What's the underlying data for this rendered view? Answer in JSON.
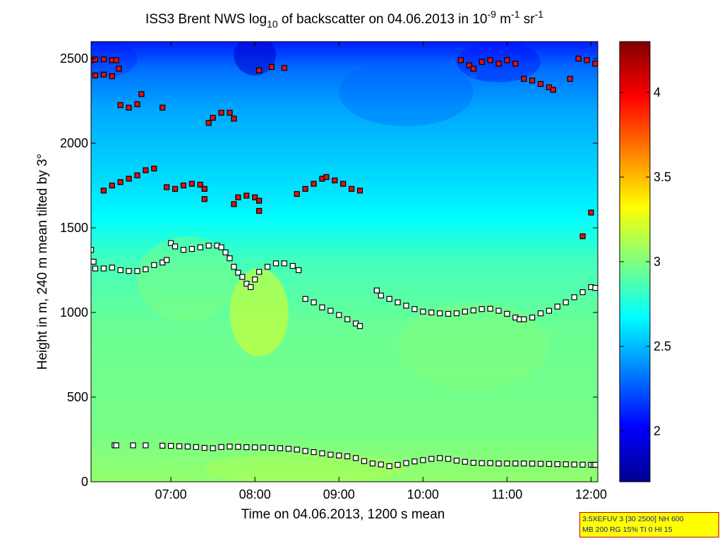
{
  "chart_data": {
    "type": "heatmap",
    "title_parts": {
      "prefix": "ISS3 Brent NWS log",
      "sub": "10",
      "middle": " of backscatter on 04.06.2013 in 10",
      "sup1": "-9",
      "m": " m",
      "sup2": "-1",
      "sr": " sr",
      "sup3": "-1"
    },
    "xlabel": "Time on 04.06.2013, 1200 s mean",
    "ylabel": "Height in m, 240 m mean tilted by 3°",
    "x_range_hours": [
      6.05,
      12.08
    ],
    "y_range_m": [
      0,
      2600
    ],
    "x_ticks": [
      {
        "value": 7.0,
        "label": "07:00"
      },
      {
        "value": 8.0,
        "label": "08:00"
      },
      {
        "value": 9.0,
        "label": "09:00"
      },
      {
        "value": 10.0,
        "label": "10:00"
      },
      {
        "value": 11.0,
        "label": "11:00"
      },
      {
        "value": 12.0,
        "label": "12:00"
      }
    ],
    "y_ticks": [
      {
        "value": 0,
        "label": "0"
      },
      {
        "value": 500,
        "label": "500"
      },
      {
        "value": 1000,
        "label": "1000"
      },
      {
        "value": 1500,
        "label": "1500"
      },
      {
        "value": 2000,
        "label": "2000"
      },
      {
        "value": 2500,
        "label": "2500"
      }
    ],
    "colorbar": {
      "range": [
        1.7,
        4.3
      ],
      "colormap": "jet",
      "ticks": [
        {
          "value": 2.0,
          "label": "2"
        },
        {
          "value": 2.5,
          "label": "2.5"
        },
        {
          "value": 3.0,
          "label": "3"
        },
        {
          "value": 3.5,
          "label": "3.5"
        },
        {
          "value": 4.0,
          "label": "4"
        }
      ]
    },
    "background_profile": [
      {
        "height": 0,
        "value": 3.05
      },
      {
        "height": 300,
        "value": 2.98
      },
      {
        "height": 900,
        "value": 2.95
      },
      {
        "height": 1300,
        "value": 2.85
      },
      {
        "height": 1600,
        "value": 2.65
      },
      {
        "height": 1900,
        "value": 2.55
      },
      {
        "height": 2200,
        "value": 2.45
      },
      {
        "height": 2450,
        "value": 2.3
      },
      {
        "height": 2600,
        "value": 2.1
      }
    ],
    "series": [
      {
        "name": "layer-low",
        "marker": "white-square",
        "points": [
          [
            6.33,
            215
          ],
          [
            6.35,
            215
          ],
          [
            6.55,
            215
          ],
          [
            6.7,
            215
          ],
          [
            6.9,
            213
          ],
          [
            7.0,
            212
          ],
          [
            7.1,
            210
          ],
          [
            7.2,
            208
          ],
          [
            7.3,
            205
          ],
          [
            7.4,
            200
          ],
          [
            7.5,
            198
          ],
          [
            7.6,
            205
          ],
          [
            7.7,
            208
          ],
          [
            7.8,
            206
          ],
          [
            7.9,
            204
          ],
          [
            8.0,
            203
          ],
          [
            8.1,
            202
          ],
          [
            8.2,
            200
          ],
          [
            8.3,
            198
          ],
          [
            8.4,
            195
          ],
          [
            8.5,
            190
          ],
          [
            8.6,
            182
          ],
          [
            8.7,
            175
          ],
          [
            8.8,
            168
          ],
          [
            8.9,
            160
          ],
          [
            9.0,
            155
          ],
          [
            9.1,
            150
          ],
          [
            9.2,
            140
          ],
          [
            9.3,
            122
          ],
          [
            9.4,
            108
          ],
          [
            9.5,
            102
          ],
          [
            9.6,
            92
          ],
          [
            9.7,
            100
          ],
          [
            9.8,
            110
          ],
          [
            9.9,
            120
          ],
          [
            10.0,
            128
          ],
          [
            10.1,
            135
          ],
          [
            10.2,
            140
          ],
          [
            10.3,
            135
          ],
          [
            10.4,
            125
          ],
          [
            10.5,
            118
          ],
          [
            10.6,
            112
          ],
          [
            10.7,
            110
          ],
          [
            10.8,
            110
          ],
          [
            10.9,
            108
          ],
          [
            11.0,
            108
          ],
          [
            11.1,
            108
          ],
          [
            11.2,
            108
          ],
          [
            11.3,
            107
          ],
          [
            11.4,
            106
          ],
          [
            11.5,
            105
          ],
          [
            11.6,
            104
          ],
          [
            11.7,
            103
          ],
          [
            11.8,
            102
          ],
          [
            11.9,
            101
          ],
          [
            12.0,
            100
          ],
          [
            12.03,
            100
          ],
          [
            12.05,
            100
          ]
        ]
      },
      {
        "name": "layer-mid",
        "marker": "white-square",
        "points": [
          [
            6.05,
            1370
          ],
          [
            6.08,
            1300
          ],
          [
            6.1,
            1260
          ],
          [
            6.2,
            1260
          ],
          [
            6.3,
            1265
          ],
          [
            6.4,
            1250
          ],
          [
            6.5,
            1245
          ],
          [
            6.6,
            1245
          ],
          [
            6.7,
            1255
          ],
          [
            6.8,
            1280
          ],
          [
            6.9,
            1295
          ],
          [
            6.95,
            1310
          ],
          [
            7.0,
            1410
          ],
          [
            7.05,
            1390
          ],
          [
            7.15,
            1370
          ],
          [
            7.25,
            1375
          ],
          [
            7.35,
            1385
          ],
          [
            7.45,
            1395
          ],
          [
            7.55,
            1395
          ],
          [
            7.6,
            1385
          ],
          [
            7.65,
            1355
          ],
          [
            7.7,
            1320
          ],
          [
            7.75,
            1270
          ],
          [
            7.8,
            1235
          ],
          [
            7.85,
            1210
          ],
          [
            7.9,
            1170
          ],
          [
            7.95,
            1150
          ],
          [
            8.0,
            1195
          ],
          [
            8.05,
            1240
          ],
          [
            8.15,
            1270
          ],
          [
            8.25,
            1290
          ],
          [
            8.35,
            1290
          ],
          [
            8.45,
            1275
          ],
          [
            8.52,
            1250
          ]
        ]
      },
      {
        "name": "layer-mid-2",
        "marker": "white-square",
        "points": [
          [
            8.6,
            1080
          ],
          [
            8.7,
            1060
          ],
          [
            8.8,
            1030
          ],
          [
            8.9,
            1010
          ],
          [
            9.0,
            985
          ],
          [
            9.1,
            960
          ],
          [
            9.2,
            935
          ],
          [
            9.25,
            920
          ]
        ]
      },
      {
        "name": "layer-mid-3",
        "marker": "white-square",
        "points": [
          [
            9.45,
            1130
          ],
          [
            9.5,
            1100
          ],
          [
            9.6,
            1080
          ],
          [
            9.7,
            1060
          ],
          [
            9.8,
            1040
          ],
          [
            9.9,
            1020
          ],
          [
            10.0,
            1005
          ],
          [
            10.1,
            1000
          ],
          [
            10.2,
            995
          ],
          [
            10.3,
            992
          ],
          [
            10.4,
            995
          ],
          [
            10.5,
            1005
          ],
          [
            10.6,
            1012
          ],
          [
            10.7,
            1020
          ],
          [
            10.8,
            1022
          ],
          [
            10.9,
            1010
          ],
          [
            11.0,
            992
          ],
          [
            11.1,
            970
          ],
          [
            11.15,
            960
          ],
          [
            11.2,
            960
          ],
          [
            11.3,
            970
          ],
          [
            11.4,
            995
          ],
          [
            11.5,
            1010
          ],
          [
            11.6,
            1035
          ],
          [
            11.7,
            1060
          ],
          [
            11.8,
            1090
          ],
          [
            11.9,
            1120
          ],
          [
            12.0,
            1150
          ],
          [
            12.05,
            1145
          ]
        ]
      },
      {
        "name": "layer-upper",
        "marker": "red-square",
        "points": [
          [
            6.2,
            1720
          ],
          [
            6.3,
            1750
          ],
          [
            6.4,
            1770
          ],
          [
            6.5,
            1790
          ],
          [
            6.6,
            1810
          ],
          [
            6.7,
            1840
          ],
          [
            6.8,
            1850
          ],
          [
            6.95,
            1740
          ],
          [
            7.05,
            1730
          ],
          [
            7.15,
            1750
          ],
          [
            7.25,
            1760
          ],
          [
            7.35,
            1755
          ],
          [
            7.4,
            1730
          ],
          [
            7.4,
            1670
          ],
          [
            7.75,
            1640
          ],
          [
            7.8,
            1680
          ],
          [
            7.9,
            1690
          ],
          [
            8.0,
            1680
          ],
          [
            8.05,
            1660
          ],
          [
            8.05,
            1600
          ],
          [
            8.5,
            1700
          ],
          [
            8.6,
            1730
          ],
          [
            8.7,
            1760
          ],
          [
            8.8,
            1790
          ],
          [
            8.85,
            1800
          ],
          [
            8.95,
            1780
          ],
          [
            9.05,
            1760
          ],
          [
            9.15,
            1730
          ],
          [
            9.25,
            1720
          ]
        ]
      },
      {
        "name": "layer-top",
        "marker": "red-square",
        "points": [
          [
            6.05,
            2490
          ],
          [
            6.1,
            2495
          ],
          [
            6.2,
            2495
          ],
          [
            6.3,
            2490
          ],
          [
            6.35,
            2490
          ],
          [
            6.38,
            2440
          ],
          [
            6.4,
            2225
          ],
          [
            6.5,
            2210
          ],
          [
            6.6,
            2230
          ],
          [
            6.65,
            2290
          ],
          [
            6.9,
            2210
          ],
          [
            7.45,
            2120
          ],
          [
            7.5,
            2150
          ],
          [
            7.6,
            2180
          ],
          [
            7.7,
            2180
          ],
          [
            7.75,
            2145
          ],
          [
            8.05,
            2430
          ],
          [
            8.2,
            2450
          ],
          [
            8.35,
            2445
          ],
          [
            10.45,
            2490
          ],
          [
            10.55,
            2460
          ],
          [
            10.6,
            2440
          ],
          [
            10.7,
            2480
          ],
          [
            10.8,
            2490
          ],
          [
            10.9,
            2470
          ],
          [
            11.0,
            2490
          ],
          [
            11.1,
            2470
          ],
          [
            11.2,
            2380
          ],
          [
            11.3,
            2370
          ],
          [
            11.4,
            2350
          ],
          [
            11.5,
            2330
          ],
          [
            11.55,
            2315
          ],
          [
            11.75,
            2380
          ],
          [
            11.85,
            2500
          ],
          [
            11.95,
            2490
          ],
          [
            12.05,
            2470
          ],
          [
            12.0,
            1590
          ],
          [
            11.9,
            1450
          ],
          [
            6.1,
            2400
          ],
          [
            6.2,
            2405
          ],
          [
            6.3,
            2395
          ]
        ]
      }
    ]
  },
  "info_box": {
    "line1": "3.5XEFUV 3 [30 2500] NH 600",
    "line2": "MB 200 RG 15% TI 0 HI 15"
  }
}
